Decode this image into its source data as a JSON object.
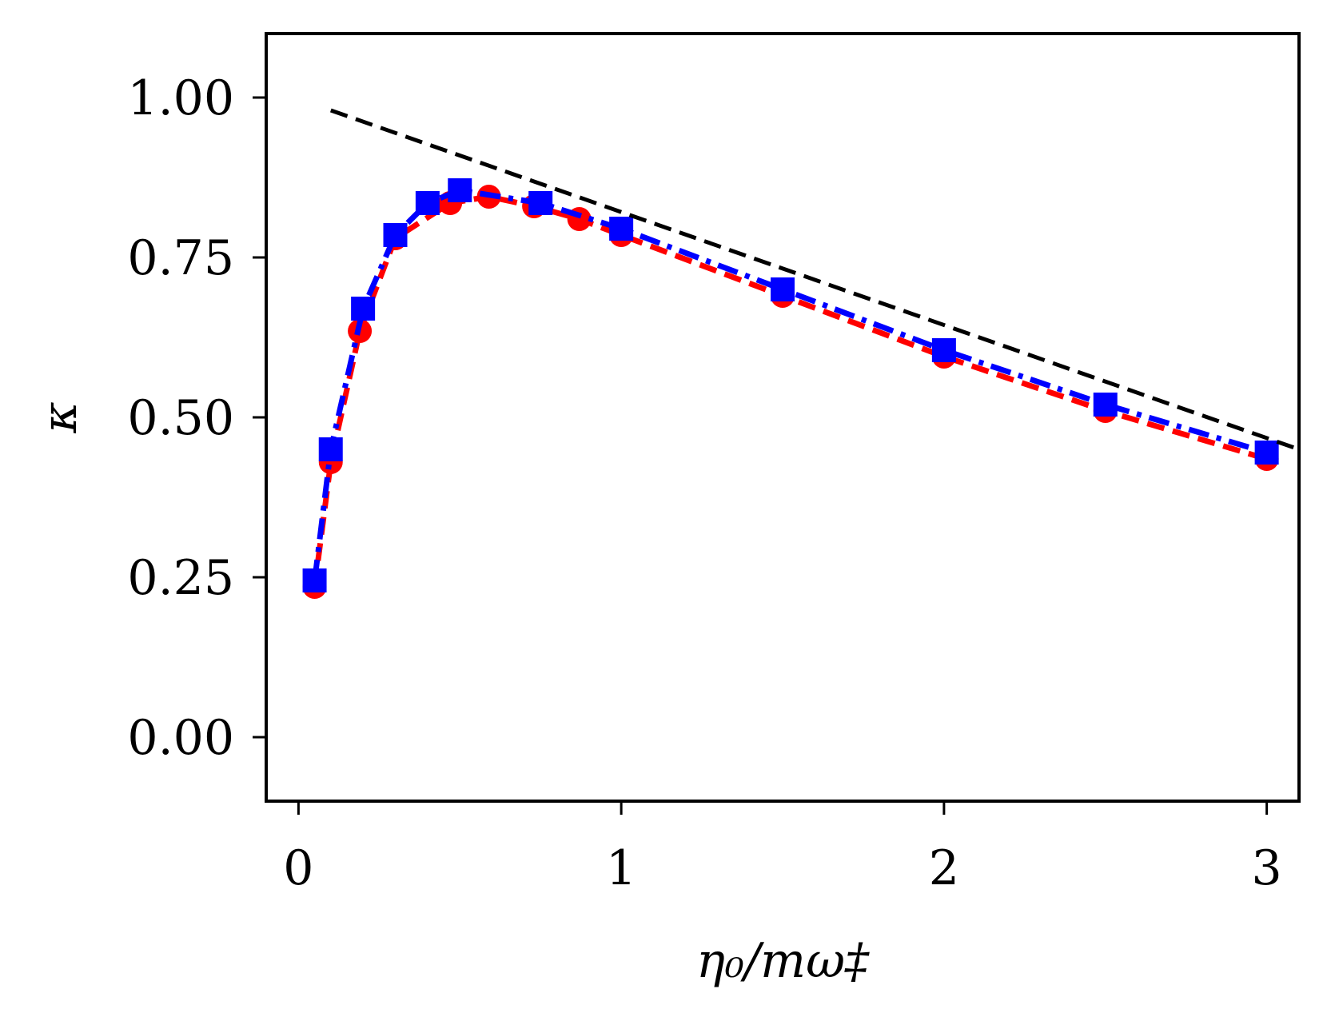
{
  "chart_data": {
    "type": "line",
    "xlabel": "η₀/mω‡",
    "ylabel": "κ",
    "xlim": [
      -0.1,
      3.1
    ],
    "ylim": [
      -0.1,
      1.1
    ],
    "xticks": [
      0,
      1,
      2,
      3
    ],
    "xtick_labels": [
      "0",
      "1",
      "2",
      "3"
    ],
    "yticks": [
      0.0,
      0.25,
      0.5,
      0.75,
      1.0
    ],
    "ytick_labels": [
      "0.00",
      "0.25",
      "0.50",
      "0.75",
      "1.00"
    ],
    "grid": false,
    "series": [
      {
        "color": "#ff0000",
        "marker": "circle",
        "line_style": "dashed",
        "x": [
          0.05,
          0.1,
          0.19,
          0.3,
          0.47,
          0.59,
          0.73,
          0.87,
          1.0,
          1.5,
          2.0,
          2.5,
          3.0
        ],
        "y": [
          0.235,
          0.43,
          0.635,
          0.78,
          0.835,
          0.845,
          0.83,
          0.81,
          0.785,
          0.69,
          0.595,
          0.51,
          0.435
        ]
      },
      {
        "color": "#0000ff",
        "marker": "square",
        "line_style": "dashdot",
        "x": [
          0.05,
          0.1,
          0.2,
          0.3,
          0.4,
          0.5,
          0.75,
          1.0,
          1.5,
          2.0,
          2.5,
          3.0
        ],
        "y": [
          0.245,
          0.45,
          0.67,
          0.785,
          0.835,
          0.855,
          0.835,
          0.795,
          0.7,
          0.605,
          0.52,
          0.445
        ]
      },
      {
        "color": "#000000",
        "marker": "none",
        "line_style": "dashed",
        "x": [
          0.1,
          3.1
        ],
        "y": [
          0.98,
          0.45
        ]
      }
    ]
  }
}
